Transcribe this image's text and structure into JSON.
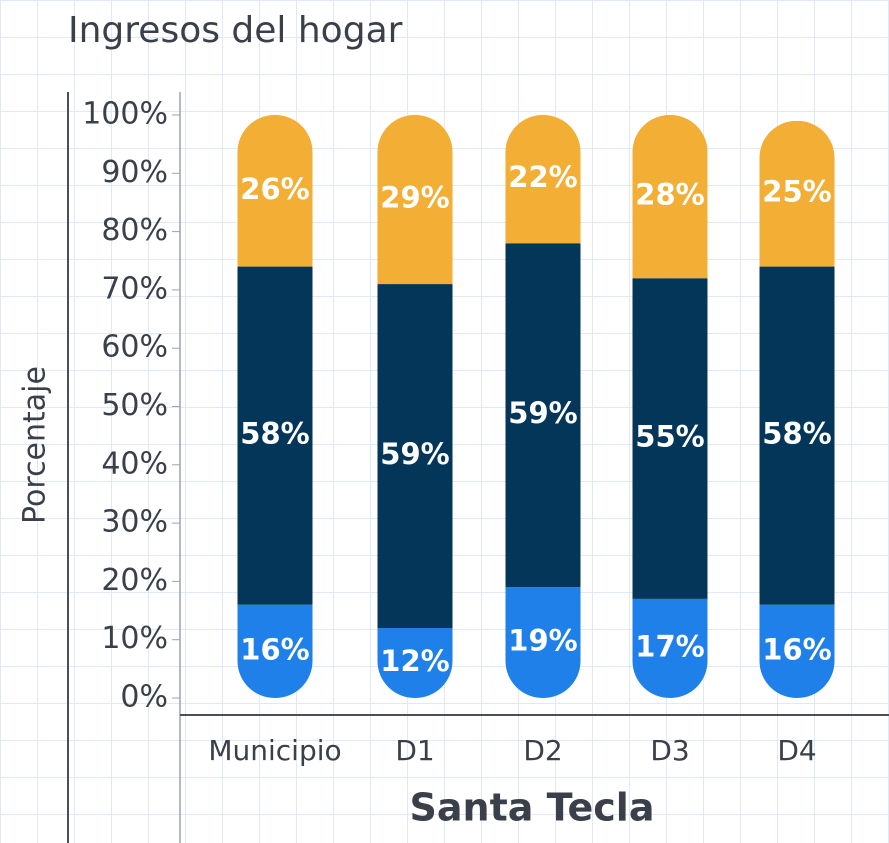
{
  "chart_data": {
    "type": "stacked_bar",
    "title": "Ingresos del hogar",
    "y_label": "Porcentaje",
    "x_label": "Santa Tecla",
    "categories": [
      "Municipio",
      "D1",
      "D2",
      "D3",
      "D4"
    ],
    "series": [
      {
        "color": "#1f80ea",
        "values": [
          16,
          12,
          19,
          17,
          16
        ],
        "value_labels": [
          "16%",
          "12%",
          "19%",
          "17%",
          "16%"
        ]
      },
      {
        "color": "#04365a",
        "values": [
          58,
          59,
          59,
          55,
          58
        ],
        "value_labels": [
          "58%",
          "59%",
          "59%",
          "55%",
          "58%"
        ]
      },
      {
        "color": "#f2ae35",
        "values": [
          26,
          29,
          22,
          28,
          25
        ],
        "value_labels": [
          "26%",
          "29%",
          "22%",
          "28%",
          "25%"
        ]
      }
    ],
    "ylim": [
      0,
      100
    ],
    "yticks": [
      {
        "value": 0,
        "label": "0%"
      },
      {
        "value": 10,
        "label": "10%"
      },
      {
        "value": 20,
        "label": "20%"
      },
      {
        "value": 30,
        "label": "30%"
      },
      {
        "value": 40,
        "label": "40%"
      },
      {
        "value": 50,
        "label": "50%"
      },
      {
        "value": 60,
        "label": "60%"
      },
      {
        "value": 70,
        "label": "70%"
      },
      {
        "value": 80,
        "label": "80%"
      },
      {
        "value": 90,
        "label": "90%"
      },
      {
        "value": 100,
        "label": "100%"
      }
    ]
  }
}
